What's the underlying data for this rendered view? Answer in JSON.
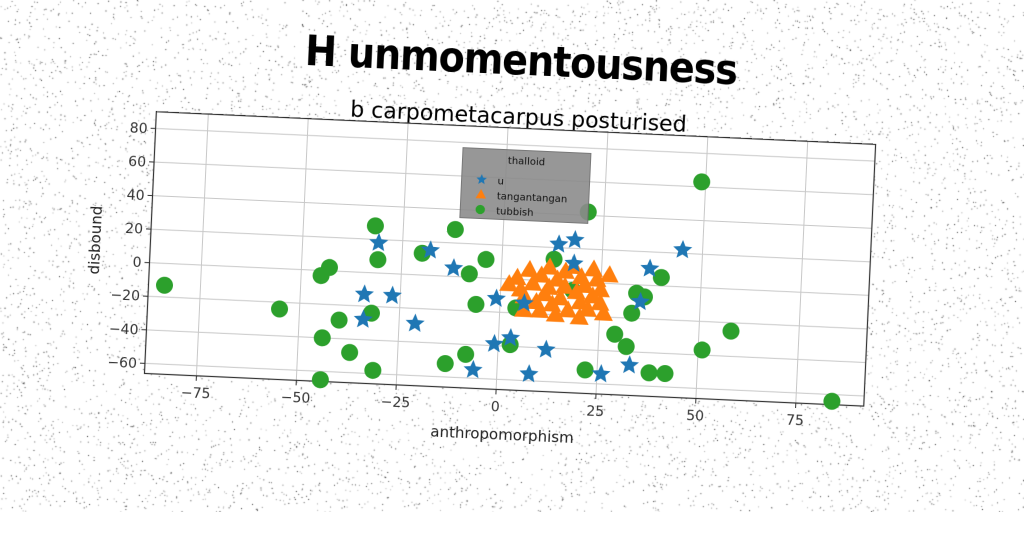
{
  "figure": {
    "suptitle": "H unmomentousness",
    "title": "b carpometacarpus posturised"
  },
  "chart_data": {
    "type": "scatter",
    "title": "b carpometacarpus posturised",
    "xlabel": "anthropomorphism",
    "ylabel": "disbound",
    "xlim": [
      -88,
      92
    ],
    "ylim": [
      -66,
      90
    ],
    "xticks": [
      -75,
      -50,
      -25,
      0,
      25,
      50,
      75
    ],
    "yticks": [
      -60,
      -40,
      -20,
      0,
      20,
      40,
      60,
      80
    ],
    "grid": true,
    "legend": {
      "title": "thalloid",
      "placement": "upper-center"
    },
    "series": [
      {
        "name": "u",
        "marker": "star",
        "color": "#1f77b4",
        "points": [
          [
            -31,
            18
          ],
          [
            -34,
            -13
          ],
          [
            -27,
            -13
          ],
          [
            -34,
            -28
          ],
          [
            -21,
            -29
          ],
          [
            -18,
            15
          ],
          [
            -12,
            5
          ],
          [
            -1,
            -12
          ],
          [
            -1,
            -39
          ],
          [
            -6,
            -55
          ],
          [
            3,
            -35
          ],
          [
            6,
            -14
          ],
          [
            8,
            -56
          ],
          [
            12,
            -41
          ],
          [
            14,
            22
          ],
          [
            18,
            25
          ],
          [
            18,
            11
          ],
          [
            26,
            -54
          ],
          [
            33,
            -48
          ],
          [
            35,
            -10
          ],
          [
            37,
            10
          ],
          [
            45,
            22
          ]
        ]
      },
      {
        "name": "tangantangan",
        "marker": "triangle",
        "color": "#ff7f0e",
        "points": [
          [
            2,
            -3
          ],
          [
            4,
            1
          ],
          [
            5,
            -6
          ],
          [
            6,
            -10
          ],
          [
            7,
            6
          ],
          [
            8,
            -2
          ],
          [
            9,
            -13
          ],
          [
            10,
            3
          ],
          [
            11,
            -8
          ],
          [
            12,
            8
          ],
          [
            12,
            -4
          ],
          [
            13,
            -14
          ],
          [
            14,
            1
          ],
          [
            15,
            -10
          ],
          [
            16,
            6
          ],
          [
            16,
            -3
          ],
          [
            17,
            -17
          ],
          [
            18,
            9
          ],
          [
            19,
            -6
          ],
          [
            20,
            -12
          ],
          [
            20,
            3
          ],
          [
            21,
            -2
          ],
          [
            22,
            -16
          ],
          [
            23,
            8
          ],
          [
            23,
            -8
          ],
          [
            24,
            2
          ],
          [
            25,
            -12
          ],
          [
            25,
            -4
          ],
          [
            26,
            -18
          ],
          [
            27,
            5
          ],
          [
            14,
            -20
          ],
          [
            10,
            -18
          ],
          [
            6,
            -18
          ],
          [
            20,
            -21
          ]
        ]
      },
      {
        "name": "tubbish",
        "marker": "circle",
        "color": "#2ca02c",
        "points": [
          [
            -84,
            -13
          ],
          [
            -55,
            -24
          ],
          [
            -45,
            -3
          ],
          [
            -43,
            2
          ],
          [
            -44,
            -40
          ],
          [
            -40,
            -29
          ],
          [
            -37,
            -48
          ],
          [
            -44,
            -65
          ],
          [
            -32,
            28
          ],
          [
            -31,
            8
          ],
          [
            -32,
            -24
          ],
          [
            -31,
            -58
          ],
          [
            -20,
            13
          ],
          [
            -12,
            28
          ],
          [
            -13,
            -52
          ],
          [
            -8,
            2
          ],
          [
            -6,
            -16
          ],
          [
            -8,
            -46
          ],
          [
            -4,
            11
          ],
          [
            3,
            -39
          ],
          [
            4,
            -17
          ],
          [
            13,
            13
          ],
          [
            18,
            -5
          ],
          [
            21,
            42
          ],
          [
            22,
            -52
          ],
          [
            29,
            -30
          ],
          [
            32,
            -37
          ],
          [
            33,
            -17
          ],
          [
            34,
            -5
          ],
          [
            36,
            -7
          ],
          [
            38,
            -52
          ],
          [
            40,
            5
          ],
          [
            42,
            -52
          ],
          [
            49,
            63
          ],
          [
            51,
            -37
          ],
          [
            58,
            -25
          ],
          [
            84,
            -64
          ]
        ]
      }
    ]
  }
}
